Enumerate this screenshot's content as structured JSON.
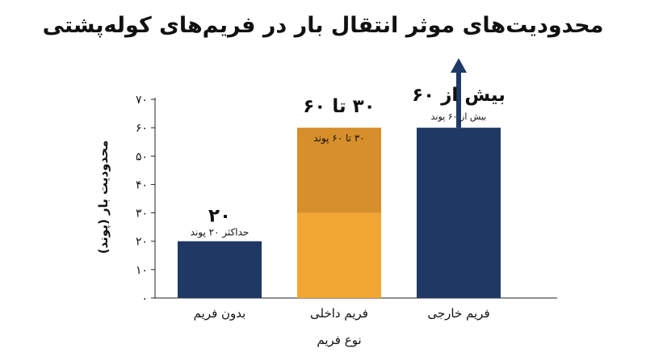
{
  "chart_data": {
    "type": "bar",
    "title": "محدودیت‌های موثر انتقال بار در فریم‌های کوله‌پشتی",
    "xlabel": "نوع فریم",
    "ylabel": "محدودیت بار (پوند)",
    "ylim": [
      0,
      70
    ],
    "yticks": [
      0,
      10,
      20,
      30,
      40,
      50,
      60,
      70
    ],
    "ytick_labels": [
      "۰",
      "۱۰",
      "۲۰",
      "۳۰",
      "۴۰",
      "۵۰",
      "۶۰",
      "۷۰"
    ],
    "grid": false,
    "categories": [
      "بدون فریم",
      "فریم داخلی",
      "فریم خارجی"
    ],
    "bars": [
      {
        "category": "بدون فریم",
        "base": 0,
        "value": 20,
        "color": "#203864",
        "value_label": "۲۰",
        "sub_label": "حداکثر ۲۰ پوند"
      },
      {
        "category": "فریم داخلی",
        "base": 30,
        "value": 30,
        "base_color": "#f2a735",
        "color": "#d68f2a",
        "value_label": "۳۰ تا ۶۰",
        "sub_label": "۳۰ تا ۶۰ پوند"
      },
      {
        "category": "فریم خارجی",
        "base": 0,
        "value": 60,
        "color": "#203864",
        "arrow": true,
        "value_label": "بیش از ۶۰",
        "sub_label": "بیش از ۶۰ پوند"
      }
    ]
  }
}
